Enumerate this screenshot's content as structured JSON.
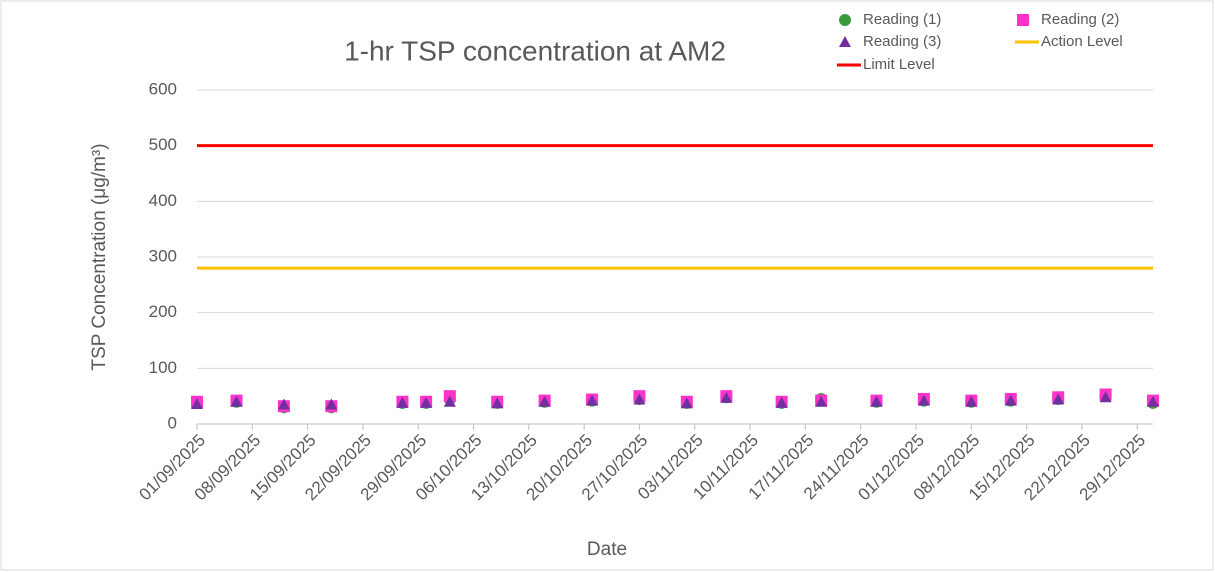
{
  "chart_data": {
    "type": "scatter",
    "title": "1-hr TSP concentration at AM2",
    "y_label": "TSP Concentration (μg/m³)",
    "x_label": "Date",
    "x": [
      "01/09/2025",
      "06/09/2025",
      "12/09/2025",
      "18/09/2025",
      "27/09/2025",
      "30/09/2025",
      "03/10/2025",
      "09/10/2025",
      "15/10/2025",
      "21/10/2025",
      "27/10/2025",
      "02/11/2025",
      "07/11/2025",
      "14/11/2025",
      "19/11/2025",
      "26/11/2025",
      "02/12/2025",
      "08/12/2025",
      "13/12/2025",
      "19/12/2025",
      "25/12/2025",
      "31/12/2025"
    ],
    "series": [
      {
        "name": "Reading (1)",
        "color": "#3a9a3a",
        "marker": "circle",
        "values": [
          38,
          40,
          30,
          30,
          38,
          38,
          45,
          38,
          40,
          42,
          45,
          38,
          48,
          38,
          45,
          40,
          42,
          40,
          42,
          45,
          50,
          38
        ]
      },
      {
        "name": "Reading (2)",
        "color": "#ff33cc",
        "marker": "square",
        "values": [
          40,
          42,
          32,
          32,
          40,
          40,
          50,
          40,
          42,
          44,
          50,
          40,
          50,
          40,
          42,
          42,
          45,
          42,
          45,
          48,
          53,
          42
        ]
      },
      {
        "name": "Reading (3)",
        "color": "#7030a0",
        "marker": "triangle",
        "values": [
          36,
          40,
          35,
          35,
          38,
          38,
          40,
          37,
          40,
          42,
          44,
          37,
          47,
          38,
          40,
          40,
          42,
          40,
          42,
          44,
          48,
          40
        ]
      }
    ],
    "lines": [
      {
        "name": "Action Level",
        "color": "#ffc000",
        "value": 280
      },
      {
        "name": "Limit Level",
        "color": "#ff0000",
        "value": 500
      }
    ],
    "xlim": [
      "01/09/2025",
      "31/12/2025"
    ],
    "xticks": [
      "01/09/2025",
      "08/09/2025",
      "15/09/2025",
      "22/09/2025",
      "29/09/2025",
      "06/10/2025",
      "13/10/2025",
      "20/10/2025",
      "27/10/2025",
      "03/11/2025",
      "10/11/2025",
      "17/11/2025",
      "24/11/2025",
      "01/12/2025",
      "08/12/2025",
      "15/12/2025",
      "22/12/2025",
      "29/12/2025"
    ],
    "ylim": [
      0,
      600
    ],
    "yticks": [
      0,
      100,
      200,
      300,
      400,
      500,
      600
    ],
    "grid": true
  }
}
